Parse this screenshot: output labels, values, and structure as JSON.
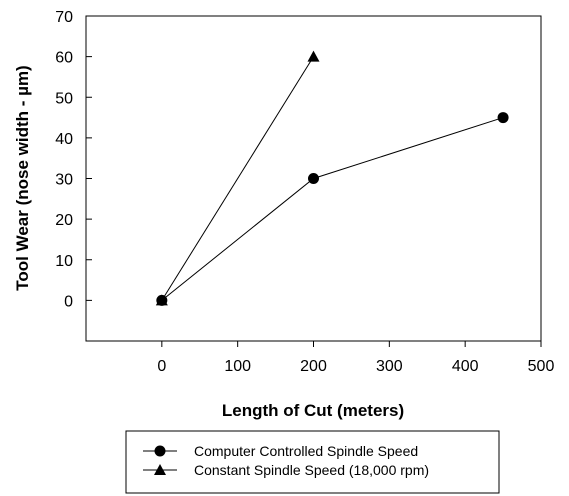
{
  "chart_data": {
    "type": "line",
    "title": "",
    "xlabel": "Length of Cut (meters)",
    "ylabel": "Tool Wear (nose width - µm)",
    "xlim": [
      -100,
      500
    ],
    "ylim": [
      -10,
      70
    ],
    "xticks": [
      0,
      100,
      200,
      300,
      400,
      500
    ],
    "yticks": [
      0,
      10,
      20,
      30,
      40,
      50,
      60,
      70
    ],
    "grid": false,
    "legend_position": "bottom-center",
    "series": [
      {
        "name": "Computer Controlled Spindle Speed",
        "marker": "circle",
        "color": "#000000",
        "x": [
          0,
          200,
          450
        ],
        "y": [
          0,
          30,
          45
        ]
      },
      {
        "name": "Constant Spindle Speed (18,000 rpm)",
        "marker": "triangle",
        "color": "#000000",
        "x": [
          0,
          200
        ],
        "y": [
          0,
          60
        ]
      }
    ]
  }
}
